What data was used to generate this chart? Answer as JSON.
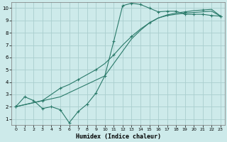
{
  "bg_color": "#cdeaea",
  "grid_color": "#aacece",
  "line_color": "#2a7a6a",
  "xlabel": "Humidex (Indice chaleur)",
  "xlim": [
    -0.5,
    23.5
  ],
  "ylim": [
    0.5,
    10.5
  ],
  "xticks": [
    0,
    1,
    2,
    3,
    4,
    5,
    6,
    7,
    8,
    9,
    10,
    11,
    12,
    13,
    14,
    15,
    16,
    17,
    18,
    19,
    20,
    21,
    22,
    23
  ],
  "yticks": [
    1,
    2,
    3,
    4,
    5,
    6,
    7,
    8,
    9,
    10
  ],
  "curve1_x": [
    0,
    1,
    2,
    3,
    4,
    5,
    6,
    7,
    8,
    9,
    10,
    11,
    12,
    13,
    14,
    15,
    16,
    17,
    18,
    19,
    20,
    21,
    22,
    23
  ],
  "curve1_y": [
    2.0,
    2.8,
    2.5,
    1.85,
    2.0,
    1.75,
    0.7,
    1.6,
    2.2,
    3.1,
    4.5,
    7.3,
    10.2,
    10.4,
    10.3,
    10.0,
    9.7,
    9.75,
    9.75,
    9.5,
    9.5,
    9.5,
    9.4,
    9.35
  ],
  "curve2_x": [
    0,
    3,
    4,
    5,
    6,
    7,
    8,
    9,
    10,
    11,
    12,
    13,
    14,
    15,
    16,
    17,
    18,
    19,
    20,
    21,
    22,
    23
  ],
  "curve2_y": [
    2.0,
    2.5,
    3.0,
    3.5,
    3.8,
    4.2,
    4.6,
    5.0,
    5.5,
    6.2,
    7.0,
    7.7,
    8.3,
    8.8,
    9.2,
    9.45,
    9.6,
    9.7,
    9.8,
    9.85,
    9.9,
    9.35
  ],
  "curve2_markers_x": [
    0,
    3,
    5,
    7,
    9,
    11,
    13,
    15,
    17,
    19,
    21,
    23
  ],
  "curve2_markers_y": [
    2.0,
    2.5,
    3.5,
    4.2,
    5.0,
    6.2,
    7.7,
    8.8,
    9.45,
    9.7,
    9.85,
    9.35
  ],
  "curve3_x": [
    0,
    5,
    10,
    12,
    13,
    14,
    15,
    16,
    17,
    18,
    19,
    20,
    21,
    22,
    23
  ],
  "curve3_y": [
    2.0,
    2.8,
    4.5,
    6.5,
    7.5,
    8.2,
    8.8,
    9.2,
    9.4,
    9.5,
    9.6,
    9.65,
    9.7,
    9.75,
    9.35
  ]
}
